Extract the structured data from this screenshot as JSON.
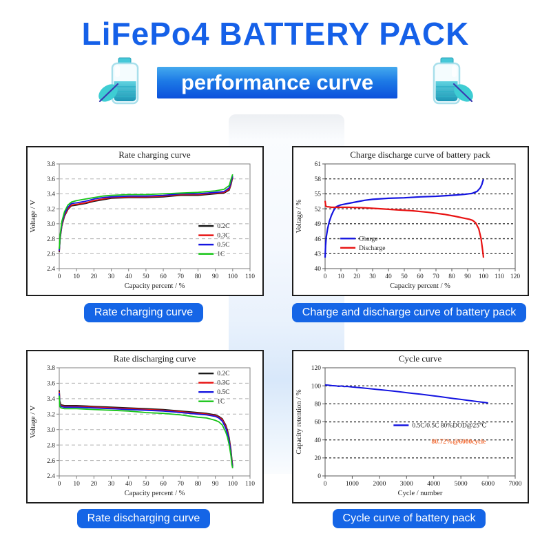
{
  "header": {
    "title": "LiFePo4 BATTERY PACK",
    "banner": "performance curve",
    "title_color": "#1560e8",
    "banner_gradient_top": "#45aaee",
    "banner_gradient_bottom": "#0b50dc"
  },
  "labels": {
    "button_color": "#1565e6",
    "top_left": "Rate charging curve",
    "top_right": "Charge and discharge curve of battery pack",
    "bottom_left": "Rate discharging curve",
    "bottom_right": "Cycle curve of battery pack"
  },
  "icons": {
    "left": "battery-with-leaf",
    "right": "battery-with-leaf"
  },
  "chart_data": [
    {
      "id": "rate-charging-curve",
      "type": "line",
      "title": "Rate charging curve",
      "xlabel": "Capacity percent / %",
      "ylabel": "Voltage / V",
      "xlim": [
        0,
        110
      ],
      "ylim": [
        2.4,
        3.8
      ],
      "xticks": [
        0,
        10,
        20,
        30,
        40,
        50,
        60,
        70,
        80,
        90,
        100,
        110
      ],
      "yticks": [
        2.4,
        2.6,
        2.8,
        3.0,
        3.2,
        3.4,
        3.6,
        3.8
      ],
      "ytick_decimals": 1,
      "grid": "dashed-horizontal",
      "grid_color": "#b0b0b0",
      "grid_dash": "5 4",
      "grid_width": 1,
      "box_color": "#808080",
      "line_width": 1.8,
      "legend": {
        "fx": 0.73,
        "fy": 0.56
      },
      "series": [
        {
          "name": "0.2C",
          "color": "#1a1a1a",
          "x": [
            0,
            0.5,
            1.5,
            3,
            5,
            7,
            10,
            15,
            20,
            25,
            30,
            40,
            50,
            60,
            70,
            80,
            90,
            95,
            98,
            99,
            100
          ],
          "y": [
            2.62,
            2.8,
            2.97,
            3.1,
            3.19,
            3.24,
            3.25,
            3.27,
            3.3,
            3.32,
            3.34,
            3.35,
            3.35,
            3.36,
            3.38,
            3.38,
            3.4,
            3.41,
            3.45,
            3.52,
            3.62
          ]
        },
        {
          "name": "0.3C",
          "color": "#e81212",
          "x": [
            0,
            0.5,
            1.5,
            3,
            5,
            7,
            10,
            15,
            20,
            25,
            30,
            40,
            50,
            60,
            70,
            80,
            90,
            95,
            98,
            99,
            100
          ],
          "y": [
            2.63,
            2.81,
            2.98,
            3.11,
            3.2,
            3.25,
            3.26,
            3.28,
            3.31,
            3.33,
            3.35,
            3.36,
            3.36,
            3.37,
            3.39,
            3.39,
            3.41,
            3.42,
            3.46,
            3.54,
            3.63
          ]
        },
        {
          "name": "0.5C",
          "color": "#1414e0",
          "x": [
            0,
            0.5,
            1.5,
            3,
            5,
            7,
            10,
            15,
            20,
            25,
            30,
            40,
            50,
            60,
            70,
            80,
            90,
            95,
            98,
            99,
            100
          ],
          "y": [
            2.64,
            2.82,
            3.0,
            3.13,
            3.22,
            3.27,
            3.28,
            3.3,
            3.33,
            3.35,
            3.36,
            3.37,
            3.37,
            3.38,
            3.4,
            3.4,
            3.42,
            3.43,
            3.48,
            3.56,
            3.64
          ]
        },
        {
          "name": "1C",
          "color": "#17c417",
          "x": [
            0,
            0.5,
            1.5,
            3,
            5,
            7,
            10,
            15,
            20,
            25,
            30,
            40,
            50,
            60,
            70,
            80,
            90,
            95,
            98,
            99,
            100
          ],
          "y": [
            2.66,
            2.85,
            3.03,
            3.16,
            3.25,
            3.29,
            3.31,
            3.33,
            3.35,
            3.37,
            3.38,
            3.39,
            3.39,
            3.4,
            3.41,
            3.42,
            3.44,
            3.46,
            3.51,
            3.59,
            3.66
          ]
        }
      ],
      "annotations": []
    },
    {
      "id": "charge-discharge-curve",
      "type": "line",
      "title": "Charge discharge curve of battery pack",
      "xlabel": "Capacity percent / %",
      "ylabel": "Voltage / %",
      "xlim": [
        0,
        120
      ],
      "ylim": [
        40,
        61
      ],
      "xticks": [
        0,
        10,
        20,
        30,
        40,
        50,
        60,
        70,
        80,
        90,
        100,
        110,
        120
      ],
      "yticks": [
        40,
        43,
        46,
        49,
        52,
        55,
        58,
        61
      ],
      "ytick_decimals": 0,
      "grid": "dashed-horizontal",
      "grid_color": "#3c3c3c",
      "grid_dash": "3 3",
      "grid_width": 1.4,
      "box_color": "#555555",
      "line_width": 2.2,
      "legend": {
        "fx": 0.08,
        "fy": 0.68
      },
      "series": [
        {
          "name": "Charge",
          "color": "#1414e0",
          "x": [
            0,
            0.3,
            0.8,
            1.5,
            2.5,
            4,
            5.5,
            7,
            10,
            15,
            20,
            25,
            30,
            40,
            50,
            60,
            70,
            80,
            88,
            93,
            96,
            98,
            99,
            99.5,
            100
          ],
          "y": [
            42.2,
            44.6,
            46.4,
            47.9,
            49.3,
            50.7,
            51.7,
            52.4,
            52.8,
            53.1,
            53.4,
            53.7,
            53.9,
            54.1,
            54.2,
            54.4,
            54.5,
            54.7,
            54.9,
            55.1,
            55.5,
            56.2,
            56.9,
            57.5,
            57.9
          ]
        },
        {
          "name": "Discharge",
          "color": "#e81212",
          "x": [
            0,
            0.4,
            1,
            2,
            4,
            8,
            15,
            25,
            35,
            45,
            55,
            65,
            75,
            82,
            88,
            91,
            93,
            95,
            97,
            98.5,
            99.5,
            100
          ],
          "y": [
            53.6,
            52.6,
            52.4,
            52.4,
            52.3,
            52.3,
            52.3,
            52.2,
            52.0,
            51.8,
            51.6,
            51.3,
            50.9,
            50.5,
            50.1,
            49.9,
            49.7,
            49.2,
            48.0,
            46.0,
            43.5,
            42.2
          ]
        }
      ],
      "annotations": []
    },
    {
      "id": "rate-discharging-curve",
      "type": "line",
      "title": "Rate discharging curve",
      "xlabel": "Capacity percent / %",
      "ylabel": "Voltage / V",
      "xlim": [
        0,
        110
      ],
      "ylim": [
        2.4,
        3.8
      ],
      "xticks": [
        0,
        10,
        20,
        30,
        40,
        50,
        60,
        70,
        80,
        90,
        100,
        110
      ],
      "yticks": [
        2.4,
        2.6,
        2.8,
        3.0,
        3.2,
        3.4,
        3.6,
        3.8
      ],
      "ytick_decimals": 1,
      "grid": "dashed-horizontal",
      "grid_color": "#b0b0b0",
      "grid_dash": "5 4",
      "grid_width": 1,
      "box_color": "#808080",
      "line_width": 1.8,
      "legend": {
        "fx": 0.73,
        "fy": 0.02
      },
      "series": [
        {
          "name": "0.2C",
          "color": "#1a1a1a",
          "x": [
            0,
            0.3,
            1,
            3,
            10,
            20,
            30,
            40,
            50,
            60,
            70,
            80,
            85,
            90,
            92,
            94,
            96,
            97,
            98,
            99,
            99.5,
            100
          ],
          "y": [
            3.51,
            3.37,
            3.32,
            3.31,
            3.31,
            3.3,
            3.29,
            3.28,
            3.27,
            3.26,
            3.24,
            3.22,
            3.21,
            3.19,
            3.17,
            3.14,
            3.06,
            2.99,
            2.89,
            2.74,
            2.62,
            2.53
          ]
        },
        {
          "name": "0.3C",
          "color": "#e81212",
          "x": [
            0,
            0.3,
            1,
            3,
            10,
            20,
            30,
            40,
            50,
            60,
            70,
            80,
            85,
            90,
            92,
            94,
            96,
            97,
            98,
            99,
            99.5,
            100
          ],
          "y": [
            3.49,
            3.35,
            3.31,
            3.3,
            3.3,
            3.29,
            3.28,
            3.27,
            3.26,
            3.25,
            3.23,
            3.21,
            3.2,
            3.18,
            3.16,
            3.13,
            3.04,
            2.97,
            2.87,
            2.72,
            2.6,
            2.52
          ]
        },
        {
          "name": "0.5C",
          "color": "#1414e0",
          "x": [
            0,
            0.3,
            1,
            3,
            10,
            20,
            30,
            40,
            50,
            60,
            70,
            80,
            85,
            90,
            92,
            94,
            96,
            97,
            98,
            99,
            99.5,
            100
          ],
          "y": [
            3.47,
            3.33,
            3.3,
            3.29,
            3.29,
            3.28,
            3.27,
            3.26,
            3.25,
            3.24,
            3.22,
            3.2,
            3.19,
            3.17,
            3.15,
            3.11,
            3.02,
            2.95,
            2.85,
            2.7,
            2.58,
            2.51
          ]
        },
        {
          "name": "1C",
          "color": "#17c417",
          "x": [
            0,
            0.3,
            1,
            3,
            10,
            20,
            30,
            40,
            50,
            60,
            70,
            80,
            85,
            90,
            92,
            94,
            96,
            97,
            98,
            99,
            99.5,
            100
          ],
          "y": [
            3.44,
            3.3,
            3.28,
            3.27,
            3.27,
            3.26,
            3.25,
            3.24,
            3.22,
            3.21,
            3.19,
            3.16,
            3.15,
            3.12,
            3.1,
            3.06,
            2.97,
            2.9,
            2.8,
            2.66,
            2.55,
            2.5
          ]
        }
      ],
      "annotations": []
    },
    {
      "id": "cycle-curve",
      "type": "line",
      "title": "Cycle curve",
      "xlabel": "Cycle / number",
      "ylabel": "Capacity retention / %",
      "xlim": [
        0,
        7000
      ],
      "ylim": [
        0,
        120
      ],
      "xticks": [
        0,
        1000,
        2000,
        3000,
        4000,
        5000,
        6000,
        7000
      ],
      "yticks": [
        0,
        20,
        40,
        60,
        80,
        100,
        120
      ],
      "ytick_decimals": 0,
      "grid": "dashed-horizontal",
      "grid_color": "#3c3c3c",
      "grid_dash": "3 3",
      "grid_width": 1.4,
      "box_color": "#555555",
      "line_width": 2,
      "legend": {
        "fx": 0.36,
        "fy": 0.5
      },
      "series": [
        {
          "name": "0.5C/0.5C  80%DOD@25℃",
          "color": "#1414e0",
          "x": [
            0,
            100,
            250,
            400,
            500,
            600,
            700,
            800,
            1000,
            1250,
            1500,
            1750,
            2000,
            2250,
            2500,
            2750,
            3000,
            3250,
            3500,
            3750,
            4000,
            4250,
            4500,
            4750,
            5000,
            5250,
            5500,
            5750,
            6000
          ],
          "y": [
            101,
            100.8,
            100.2,
            100.0,
            99.4,
            99.8,
            99.1,
            99.4,
            98.7,
            98.0,
            97.2,
            96.5,
            95.8,
            95.0,
            94.2,
            93.3,
            92.4,
            91.6,
            90.7,
            89.8,
            88.9,
            87.9,
            86.8,
            85.8,
            84.9,
            83.9,
            82.9,
            81.9,
            81.0
          ]
        }
      ],
      "annotations": [
        {
          "text": "80.72%@6000cycle",
          "color": "#f4703a",
          "fx": 0.56,
          "fy": 0.7
        }
      ]
    }
  ]
}
